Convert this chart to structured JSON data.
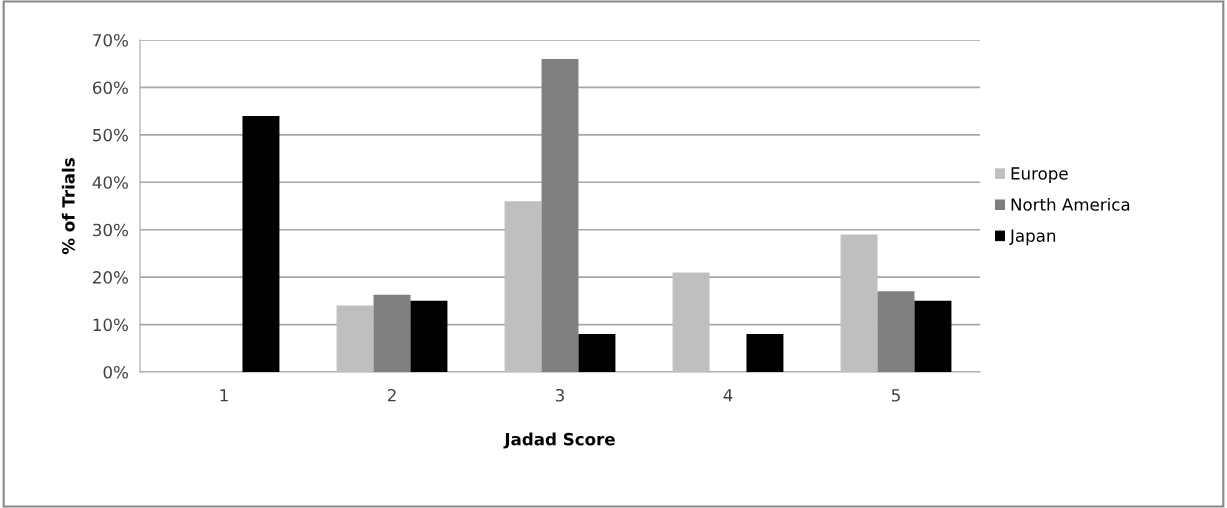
{
  "chart_data": {
    "type": "bar",
    "xlabel": "Jadad Score",
    "ylabel": "% of Trials",
    "categories": [
      "1",
      "2",
      "3",
      "4",
      "5"
    ],
    "series": [
      {
        "name": "Europe",
        "color": "#bfbfbf",
        "values": [
          0,
          14,
          36,
          21,
          29
        ]
      },
      {
        "name": "North America",
        "color": "#808080",
        "values": [
          0,
          16.3,
          66,
          0,
          17
        ]
      },
      {
        "name": "Japan",
        "color": "#000000",
        "values": [
          54,
          15,
          8,
          8,
          15
        ]
      }
    ],
    "ylim": [
      0,
      70
    ],
    "yticks": [
      {
        "value": 0,
        "label": "0%"
      },
      {
        "value": 10,
        "label": "10%"
      },
      {
        "value": 20,
        "label": "20%"
      },
      {
        "value": 30,
        "label": "30%"
      },
      {
        "value": 40,
        "label": "40%"
      },
      {
        "value": 50,
        "label": "50%"
      },
      {
        "value": 60,
        "label": "60%"
      },
      {
        "value": 70,
        "label": "70%"
      }
    ],
    "grid": "y",
    "legend": "right"
  }
}
